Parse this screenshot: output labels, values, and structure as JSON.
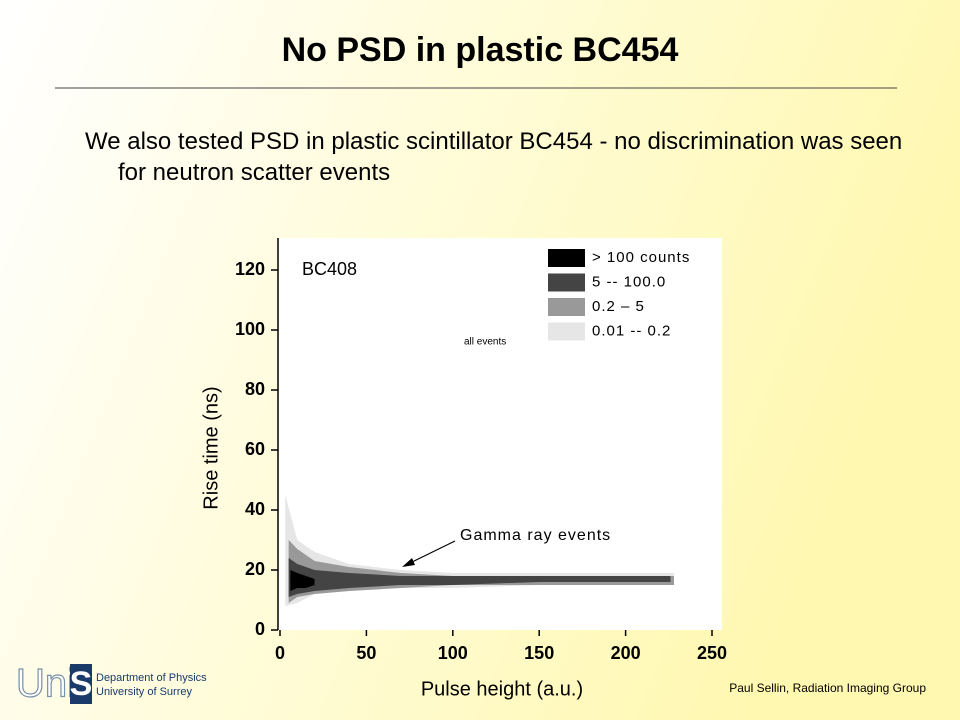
{
  "slide": {
    "title": "No PSD in plastic BC454",
    "body": "We also tested PSD in plastic scintillator BC454 - no discrimination was seen for neutron scatter events",
    "footer": "Paul Sellin, Radiation Imaging Group",
    "logo": {
      "text_1": "Uni",
      "text_2": "S",
      "line_1": "Department of Physics",
      "line_2": "University of Surrey"
    }
  },
  "chart_data": {
    "type": "contour",
    "x_label": "Pulse height (a.u.)",
    "y_label": "Rise time (ns)",
    "annotations": [
      "BC408",
      "all events",
      "Gamma ray events"
    ],
    "xlim": [
      0,
      250
    ],
    "xticks": [
      0,
      50,
      100,
      150,
      200,
      250
    ],
    "ylim": [
      0,
      130
    ],
    "yticks": [
      0,
      20,
      40,
      60,
      80,
      100,
      120
    ],
    "series": [
      {
        "name": "0.01  --  0.2",
        "color": "#e6e6e6",
        "x": [
          3,
          10,
          20,
          40,
          70,
          100,
          150,
          200,
          228
        ],
        "y_low": [
          8,
          9,
          12,
          13,
          14,
          14,
          15,
          15,
          15
        ],
        "y_high": [
          45,
          30,
          26,
          22,
          20,
          19,
          19,
          19,
          19
        ]
      },
      {
        "name": "0.2  –  5",
        "color": "#999999",
        "x": [
          5,
          10,
          20,
          40,
          70,
          100,
          150,
          200,
          228
        ],
        "y_low": [
          9,
          11,
          12,
          13,
          14,
          15,
          15,
          15,
          15
        ],
        "y_high": [
          30,
          27,
          23,
          21,
          19,
          18,
          18,
          18,
          18
        ]
      },
      {
        "name": "5  --  100.0",
        "color": "#444444",
        "x": [
          5,
          10,
          20,
          40,
          70,
          100,
          150,
          200,
          226
        ],
        "y_low": [
          11,
          12,
          13,
          14,
          15,
          15,
          16,
          16,
          16
        ],
        "y_high": [
          24,
          22,
          20,
          19,
          18,
          18,
          18,
          18,
          18
        ]
      },
      {
        "name": "> 100 counts",
        "color": "#000000",
        "x": [
          6,
          10,
          15,
          20
        ],
        "y_low": [
          13,
          14,
          14,
          15
        ],
        "y_high": [
          20,
          19,
          18,
          17
        ]
      }
    ]
  }
}
